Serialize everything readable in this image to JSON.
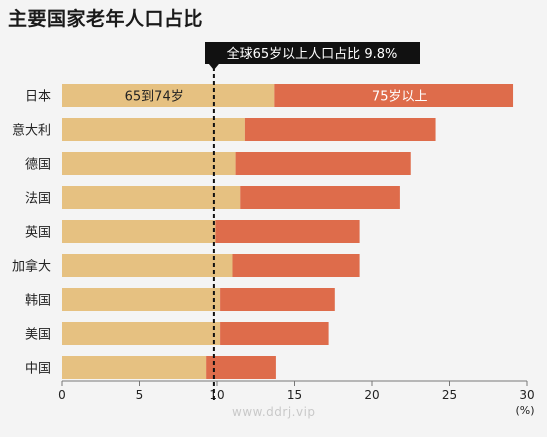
{
  "title": "主要国家老年人口占比",
  "chart_data": {
    "type": "bar",
    "orientation": "horizontal",
    "stacked": true,
    "categories": [
      "日本",
      "意大利",
      "德国",
      "法国",
      "英国",
      "加拿大",
      "韩国",
      "美国",
      "中国"
    ],
    "series": [
      {
        "name": "65到74岁",
        "values": [
          13.7,
          11.8,
          11.2,
          11.5,
          9.9,
          11.0,
          10.2,
          10.2,
          9.3
        ]
      },
      {
        "name": "75岁以上",
        "values": [
          15.4,
          12.3,
          11.3,
          10.3,
          9.3,
          8.2,
          7.4,
          7.0,
          4.5
        ]
      }
    ],
    "colors": {
      "65到74岁": "#e6c181",
      "75岁以上": "#de6c4b"
    },
    "xlim": [
      0,
      30
    ],
    "xticks": [
      0,
      5,
      10,
      15,
      20,
      25,
      30
    ],
    "unit": "(%)",
    "reference_line": {
      "value": 9.8,
      "label": "全球65岁以上人口占比 9.8%"
    },
    "grid": false
  },
  "watermark": "www.ddrj.vip"
}
